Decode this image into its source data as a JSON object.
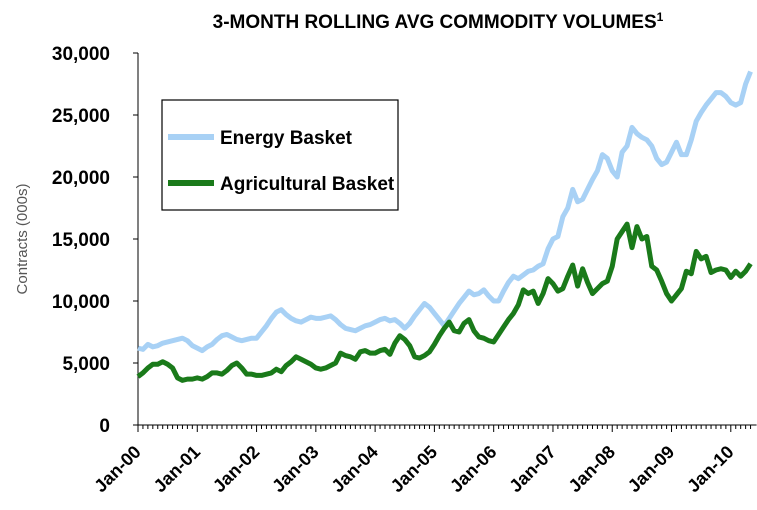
{
  "chart_data": {
    "type": "line",
    "title": "3-MONTH ROLLING AVG COMMODITY VOLUMES",
    "title_superscript": "1",
    "y_label": "Contracts (000s)",
    "categories": [
      "Jan-00",
      null,
      null,
      null,
      null,
      null,
      null,
      null,
      null,
      null,
      null,
      null,
      "Jan-01",
      null,
      null,
      null,
      null,
      null,
      null,
      null,
      null,
      null,
      null,
      null,
      "Jan-02",
      null,
      null,
      null,
      null,
      null,
      null,
      null,
      null,
      null,
      null,
      null,
      "Jan-03",
      null,
      null,
      null,
      null,
      null,
      null,
      null,
      null,
      null,
      null,
      null,
      "Jan-04",
      null,
      null,
      null,
      null,
      null,
      null,
      null,
      null,
      null,
      null,
      null,
      "Jan-05",
      null,
      null,
      null,
      null,
      null,
      null,
      null,
      null,
      null,
      null,
      null,
      "Jan-06",
      null,
      null,
      null,
      null,
      null,
      null,
      null,
      null,
      null,
      null,
      null,
      "Jan-07",
      null,
      null,
      null,
      null,
      null,
      null,
      null,
      null,
      null,
      null,
      null,
      "Jan-08",
      null,
      null,
      null,
      null,
      null,
      null,
      null,
      null,
      null,
      null,
      null,
      "Jan-09",
      null,
      null,
      null,
      null,
      null,
      null,
      null,
      null,
      null,
      null,
      null,
      "Jan-10",
      null,
      null,
      null,
      null
    ],
    "series": [
      {
        "name": "Energy Basket",
        "color": "#a8d1f5",
        "values": [
          6200,
          6100,
          6500,
          6300,
          6400,
          6600,
          6700,
          6800,
          6900,
          7000,
          6800,
          6400,
          6200,
          6000,
          6300,
          6500,
          6900,
          7200,
          7300,
          7100,
          6900,
          6800,
          6900,
          7000,
          7000,
          7500,
          8000,
          8600,
          9100,
          9300,
          8900,
          8600,
          8400,
          8300,
          8500,
          8700,
          8600,
          8600,
          8700,
          8800,
          8500,
          8100,
          7800,
          7700,
          7600,
          7800,
          8000,
          8100,
          8300,
          8500,
          8600,
          8400,
          8500,
          8200,
          7800,
          8200,
          8800,
          9300,
          9800,
          9500,
          9000,
          8500,
          8000,
          8600,
          9200,
          9800,
          10300,
          10800,
          10500,
          10600,
          10900,
          10400,
          10000,
          10000,
          10800,
          11500,
          12000,
          11800,
          12100,
          12400,
          12500,
          12800,
          13000,
          14200,
          15000,
          15200,
          16800,
          17500,
          19000,
          18000,
          18200,
          19000,
          19800,
          20500,
          21800,
          21500,
          20500,
          20000,
          22000,
          22500,
          24000,
          23500,
          23200,
          23000,
          22500,
          21500,
          21000,
          21200,
          22000,
          22800,
          21800,
          21800,
          23000,
          24500,
          25200,
          25800,
          26300,
          26800,
          26800,
          26500,
          26000,
          25800,
          26000,
          27500,
          28500
        ]
      },
      {
        "name": "Agricultural Basket",
        "color": "#1a7a1a",
        "values": [
          3900,
          4200,
          4600,
          4900,
          4900,
          5100,
          4900,
          4600,
          3800,
          3600,
          3700,
          3700,
          3800,
          3700,
          3900,
          4200,
          4200,
          4100,
          4400,
          4800,
          5000,
          4600,
          4100,
          4100,
          4000,
          4000,
          4100,
          4200,
          4500,
          4300,
          4800,
          5100,
          5500,
          5300,
          5100,
          4900,
          4600,
          4500,
          4600,
          4800,
          5000,
          5800,
          5600,
          5500,
          5300,
          5900,
          6000,
          5800,
          5800,
          6000,
          6100,
          5700,
          6600,
          7200,
          6900,
          6400,
          5500,
          5400,
          5600,
          5900,
          6500,
          7200,
          7800,
          8300,
          7600,
          7500,
          8200,
          8500,
          7600,
          7100,
          7000,
          6800,
          6700,
          7300,
          7900,
          8500,
          9000,
          9700,
          10900,
          10600,
          10800,
          9800,
          10600,
          11800,
          11400,
          10800,
          11000,
          12000,
          12900,
          11200,
          12600,
          11500,
          10600,
          11000,
          11400,
          11600,
          12800,
          15000,
          15600,
          16200,
          14300,
          16000,
          15000,
          15200,
          12800,
          12500,
          11600,
          10600,
          10000,
          10500,
          11000,
          12400,
          12200,
          14000,
          13400,
          13600,
          12300,
          12500,
          12600,
          12500,
          11900,
          12400,
          12000,
          12400,
          13000
        ]
      }
    ],
    "ylim": [
      0,
      30000
    ],
    "yticks": [
      0,
      {
        "value": 5000,
        "label": "5,000"
      },
      {
        "value": 10000,
        "label": "10,000"
      },
      {
        "value": 15000,
        "label": "15,000"
      },
      {
        "value": 20000,
        "label": "20,000"
      },
      {
        "value": 25000,
        "label": "25,000"
      },
      {
        "value": 30000,
        "label": "30,000"
      }
    ],
    "grid": false,
    "legend": "upper left"
  }
}
